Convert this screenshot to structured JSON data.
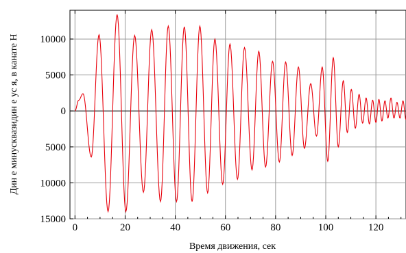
{
  "chart_data": {
    "type": "line",
    "title": "",
    "xlabel": "Время движения, сек",
    "ylabel": "Дин е минусквазидин е ус я, в канате Н",
    "xlim": [
      -2,
      132
    ],
    "ylim": [
      -15000,
      14000
    ],
    "grid": true,
    "x_ticks": [
      {
        "value": 0,
        "label": "0"
      },
      {
        "value": 20,
        "label": "20"
      },
      {
        "value": 40,
        "label": "40"
      },
      {
        "value": 60,
        "label": "60"
      },
      {
        "value": 80,
        "label": "80"
      },
      {
        "value": 100,
        "label": "100"
      },
      {
        "value": 120,
        "label": "120"
      }
    ],
    "y_ticks": [
      {
        "value": 10000,
        "label": "10000"
      },
      {
        "value": 5000,
        "label": "5000"
      },
      {
        "value": 0,
        "label": "0"
      },
      {
        "value": -5000,
        "label": "5000"
      },
      {
        "value": -10000,
        "label": "10000"
      },
      {
        "value": -15000,
        "label": "15000"
      }
    ],
    "series": [
      {
        "color": "#e8000b",
        "x": [
          0,
          1.5,
          3.2,
          6.5,
          9.6,
          13.2,
          16.8,
          20.3,
          23.8,
          27.3,
          30.6,
          34.1,
          37.2,
          40.5,
          43.6,
          46.7,
          49.8,
          52.9,
          55.8,
          58.9,
          61.8,
          64.8,
          67.6,
          70.6,
          73.3,
          76.0,
          78.8,
          81.5,
          84.0,
          86.6,
          89.1,
          91.5,
          94.0,
          96.3,
          98.6,
          100.8,
          103.0,
          105.0,
          107.0,
          108.6,
          110.2,
          111.8,
          113.3,
          114.7,
          116.1,
          117.4,
          118.7,
          120.0,
          121.2,
          122.4,
          123.6,
          124.8,
          126.0,
          127.2,
          128.4,
          129.6,
          130.8,
          132
        ],
        "y": [
          0,
          1500,
          2400,
          -6400,
          10600,
          -14000,
          13400,
          -14000,
          10500,
          -11300,
          11300,
          -12600,
          11800,
          -12600,
          11700,
          -12600,
          11800,
          -11400,
          10000,
          -10200,
          9300,
          -9500,
          8800,
          -8200,
          8300,
          -7800,
          6900,
          -7100,
          6800,
          -6200,
          6100,
          -5200,
          3800,
          -3500,
          6100,
          -7000,
          7400,
          -5000,
          4200,
          -3000,
          3000,
          -2400,
          2300,
          -1700,
          1800,
          -1800,
          1500,
          -1600,
          1600,
          -1400,
          1400,
          -1000,
          1800,
          -1000,
          1200,
          -1000,
          1400,
          -1200
        ]
      }
    ]
  }
}
